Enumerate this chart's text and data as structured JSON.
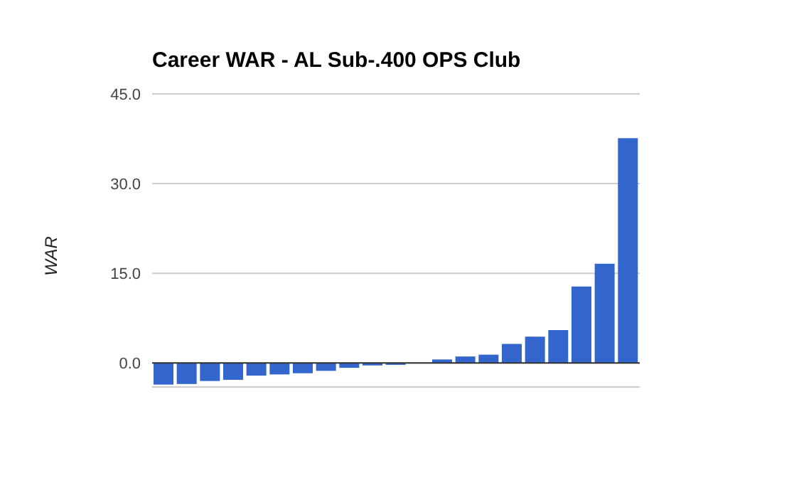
{
  "chart_data": {
    "type": "bar",
    "title": "Career WAR - AL Sub-.400 OPS Club",
    "ylabel": "WAR",
    "categories": [
      null,
      null,
      null,
      null,
      null,
      null,
      null,
      null,
      null,
      null,
      null,
      null,
      null,
      null,
      null,
      null,
      null,
      null,
      null,
      null,
      null
    ],
    "values": [
      -3.6,
      -3.5,
      -3.0,
      -2.8,
      -2.1,
      -1.9,
      -1.7,
      -1.3,
      -0.8,
      -0.4,
      -0.3,
      0,
      0.6,
      1.1,
      1.4,
      3.2,
      4.4,
      5.5,
      12.8,
      16.6,
      37.6
    ],
    "color": "#3366cc",
    "ylim": [
      -4,
      45
    ],
    "yticks": [
      {
        "value": 0,
        "label": "0.0"
      },
      {
        "value": 15,
        "label": "15.0"
      },
      {
        "value": 30,
        "label": "30.0"
      },
      {
        "value": 45,
        "label": "45.0"
      }
    ],
    "grid": "y",
    "legend": false,
    "tick_labels": "y"
  }
}
